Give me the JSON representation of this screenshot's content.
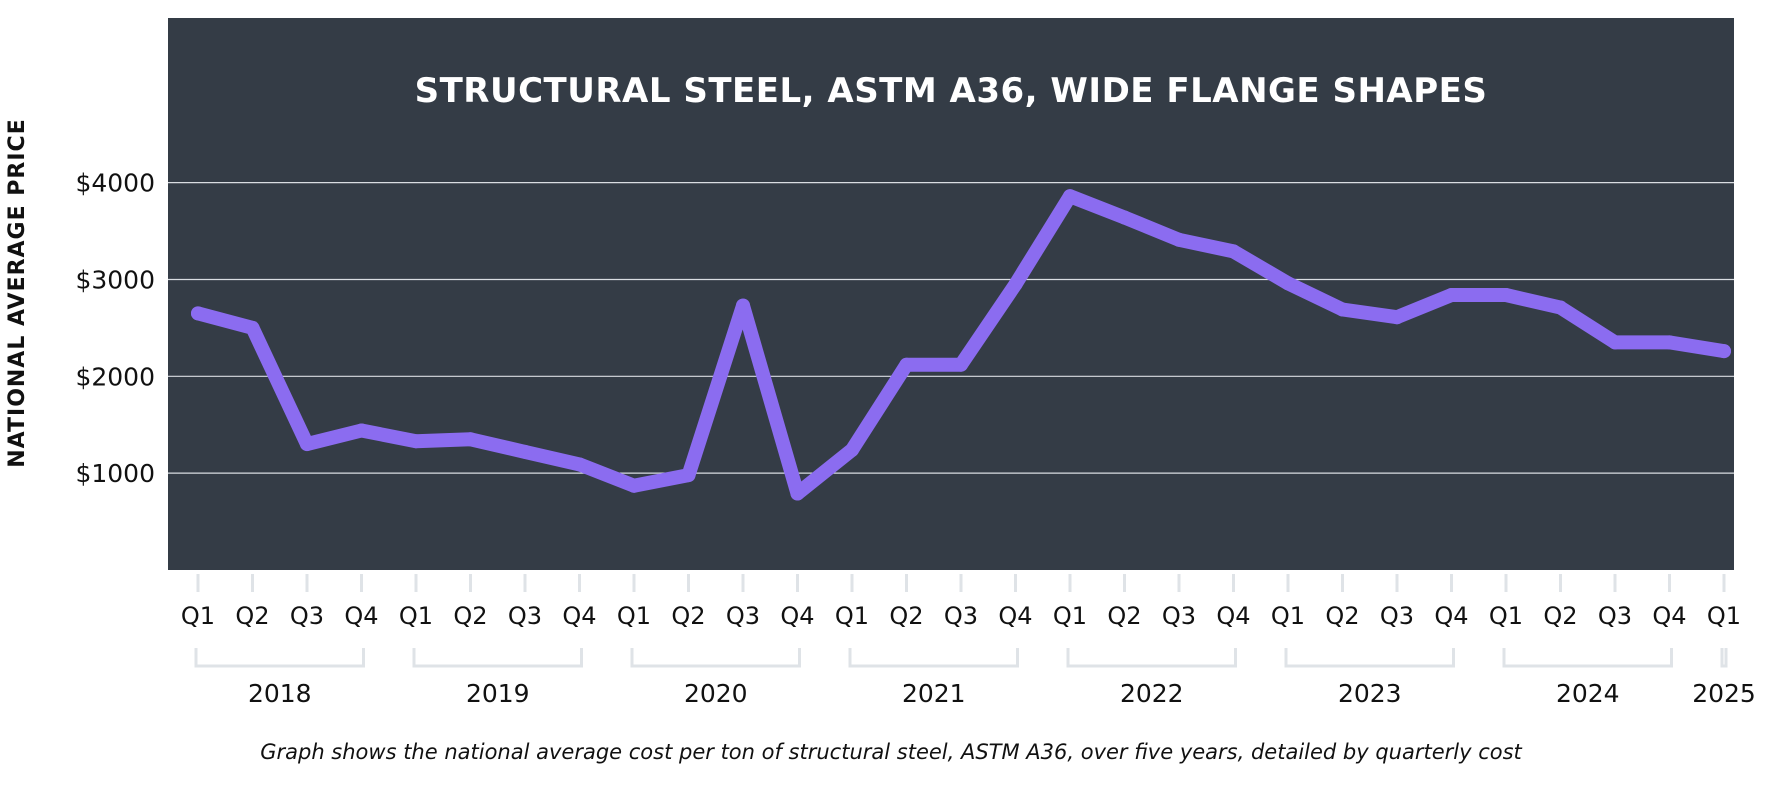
{
  "colors": {
    "plot_background": "#343c46",
    "line": "#8b6cf0",
    "text": "#111111",
    "title_text": "#ffffff",
    "bracket": "#dfe3e7"
  },
  "caption": "Graph shows the national average cost per ton of structural steel, ASTM A36, over five years, detailed by quarterly cost",
  "chart_data": {
    "type": "line",
    "title": "STRUCTURAL STEEL, ASTM A36, WIDE FLANGE SHAPES",
    "ylabel": "NATIONAL AVERAGE PRICE",
    "xlabel": "",
    "ylim": [
      0,
      5700
    ],
    "yticks": [
      1000,
      2000,
      3000,
      4000
    ],
    "ytick_labels": [
      "$1000",
      "$2000",
      "$3000",
      "$4000"
    ],
    "grid": "horizontal",
    "categories": [
      "Q1",
      "Q2",
      "Q3",
      "Q4",
      "Q1",
      "Q2",
      "Q3",
      "Q4",
      "Q1",
      "Q2",
      "Q3",
      "Q4",
      "Q1",
      "Q2",
      "Q3",
      "Q4",
      "Q1",
      "Q2",
      "Q3",
      "Q4",
      "Q1",
      "Q2",
      "Q3",
      "Q4",
      "Q1",
      "Q2",
      "Q3",
      "Q4",
      "Q1"
    ],
    "year_groups": [
      {
        "label": "2018",
        "start": 0,
        "end": 3
      },
      {
        "label": "2019",
        "start": 4,
        "end": 7
      },
      {
        "label": "2020",
        "start": 8,
        "end": 11
      },
      {
        "label": "2021",
        "start": 12,
        "end": 15
      },
      {
        "label": "2022",
        "start": 16,
        "end": 19
      },
      {
        "label": "2023",
        "start": 20,
        "end": 23
      },
      {
        "label": "2024",
        "start": 24,
        "end": 27
      },
      {
        "label": "2025",
        "start": 28,
        "end": 28
      }
    ],
    "series": [
      {
        "values": [
          2650,
          2500,
          1300,
          1440,
          1330,
          1350,
          1220,
          1090,
          870,
          980,
          2730,
          790,
          1240,
          2120,
          2120,
          2950,
          3860,
          3640,
          3410,
          3290,
          2960,
          2690,
          2610,
          2840,
          2840,
          2710,
          2350,
          2350,
          2260
        ]
      }
    ]
  }
}
